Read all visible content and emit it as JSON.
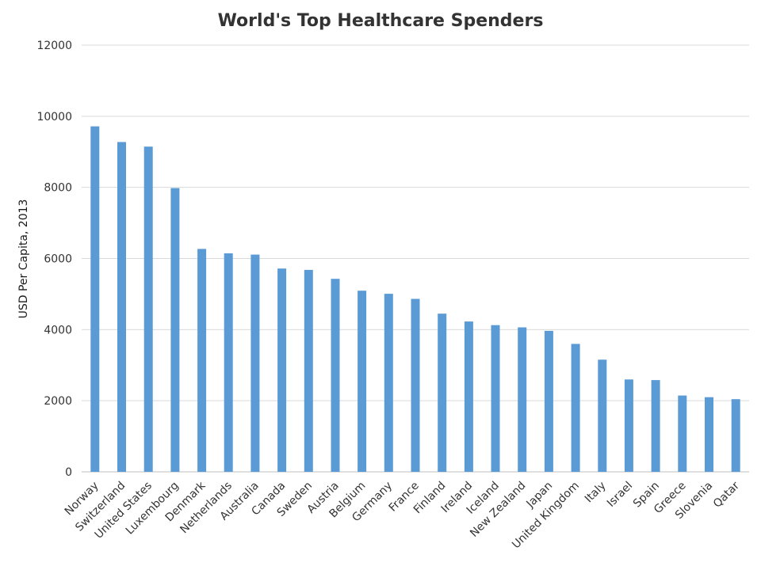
{
  "chart_data": {
    "type": "bar",
    "title": "World's Top Healthcare Spenders",
    "xlabel": "",
    "ylabel": "USD Per Capita, 2013",
    "ylim": [
      0,
      12000
    ],
    "yticks": [
      0,
      2000,
      4000,
      6000,
      8000,
      10000,
      12000
    ],
    "grid": true,
    "legend": "none",
    "bar_color": "#5B9BD5",
    "categories": [
      "Norway",
      "Switzerland",
      "United States",
      "Luxembourg",
      "Denmark",
      "Netherlands",
      "Australia",
      "Canada",
      "Sweden",
      "Austria",
      "Belgium",
      "Germany",
      "France",
      "Finland",
      "Ireland",
      "Iceland",
      "New Zealand",
      "Japan",
      "United Kingdom",
      "Italy",
      "Israel",
      "Spain",
      "Greece",
      "Slovenia",
      "Qatar"
    ],
    "values": [
      9715,
      9276,
      9146,
      7980,
      6270,
      6145,
      6110,
      5718,
      5680,
      5427,
      5093,
      5006,
      4864,
      4449,
      4227,
      4126,
      4063,
      3966,
      3598,
      3155,
      2599,
      2581,
      2146,
      2099,
      2043
    ]
  }
}
